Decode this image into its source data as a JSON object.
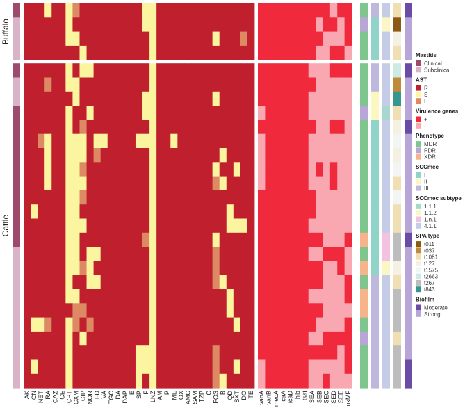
{
  "chart_data": {
    "type": "heatmap",
    "title": "",
    "groups": [
      {
        "name": "Buffalo",
        "rows": 4
      },
      {
        "name": "Cattle",
        "rows": 23
      }
    ],
    "antibiotic_columns": [
      "AK",
      "CN",
      "NET",
      "RA",
      "CAZ",
      "CE",
      "CPT",
      "CXM",
      "CIP",
      "NOR",
      "FD",
      "VA",
      "TGC",
      "DA",
      "DAP",
      "E",
      "SP",
      "F",
      "LNZ",
      "AM",
      "P",
      "ME",
      "OX",
      "AMC",
      "SAM",
      "TZP",
      "C",
      "FOS",
      "B",
      "QD",
      "SXT",
      "DO",
      "TE"
    ],
    "virulence_columns": [
      "vanA",
      "vanB",
      "mecA",
      "icaA",
      "icaD",
      "hlb",
      "tsst",
      "SEA",
      "SEB",
      "SEC",
      "SED",
      "SEE",
      "LukMF"
    ],
    "ast_codes": {
      "R": "R",
      "S": "S",
      "I": "I"
    },
    "antibiotic_matrix": [
      "RRRSRRSIRRRRRRRRRSSRRRRRRRRRRRRRR",
      "RRRRRRSRRRRRRRRRRSSRRRRRRRRRRRRRR",
      "RRRRRRSSRRRRRRRRRRSRRRRRRRRSRRRIR",
      "RRRRRRRRSRRRRRRRRRSRRRRRRRRRRRRRR",
      "RRRRRRSRSSRRRRRRRRSRRRRRRRRRRRRRR",
      "RRRIRRSSRRRRRRRRRRSRRRRRRRRRRRRRR",
      "RRRRRRRSRRRRRRRRRSSRRRRRRRRSRRRRR",
      "RRRRRRSRRSRRRRRRRSSRRRRRRRRRRRRRR",
      "RRRRRRSRIRRRRRRRRRSRRRRRRRRRRRRRR",
      "RRISRRSSSRSSRRRRSSSRRSRRRRRRRRRRR",
      "RRRSRRSSSRIRRRRRRRSRRRRRRRRRSRRRR",
      "RRRSRRSSIRRRRRRRRRSRRRRRRRRSRRSRR",
      "RRRSRRSSSRRRRRRRRRSRRRRRRRRISRRRR",
      "RRRRRRSSIRRRRRRRRRSRRRRRRRRRRRRRR",
      "RSRRRRSSRRRRRRRRRRSRRRRRRRRRRSRRR",
      "RRRRRRSSSRRRRRRRRRSRRRRRRRRRRSSSR",
      "RRRRRRSSRRRRRRRRRISRRRRRRRRSRRRRR",
      "RRRRRRSSRSSRRRRRRRSRRRRRRRRIRRRRR",
      "RRRRRRSSISRRRRRRRRSRRRRRRRRIRRRRR",
      "RRRRRRSRRSSRRRRRRRSRRRRRRRRISRRRR",
      "RRRRRRSSRRRRRRRRRRSRRRRRRRRRRSRRR",
      "RRRRRRRIIRRRRRRRRRSRRRRRRRRRRSRRR",
      "RSSIRRSIRIRRRRRRRRSRRRRRRRRRRRSRR",
      "RRRRRRSRSRRRRRRRRRSRRRRRRRRRRRRRR",
      "RRRRRRSRRRRRRRRRSSSRRRRRRRRIRRRRR",
      "RSRRRRSRRRRRRRRRSSSRRRRRRRRIRRSRR",
      "RRRRRRSRRRRRRRRRSRSRRRRRRRRISRRRR"
    ],
    "virulence_matrix": [
      "++++++++++-++",
      "++++++++-++-+",
      "+++++++++---+",
      "++++++++--++-",
      "+++++++---+++",
      "++++++++-----",
      "+++++++------",
      "-++++++------",
      "++++++++--++-",
      "-++++++------",
      "-++++++------",
      "-++++++-+-+--",
      "-++++++---+--",
      "++++++++-----",
      "++++++++-----",
      "+++++++------",
      "+++++++++---+",
      "+++++++--+++-",
      "+++++++++--+-",
      "+++++++++---+",
      "+++++++-----+",
      "+++++++++----",
      "++++++++----+",
      "+++++++--++++",
      "+++++++++++-+",
      "-++++++-----+",
      "-++++++--+---"
    ],
    "annotation_tracks": {
      "mastitis": [
        "Clinical",
        "Subclinical",
        "Subclinical",
        "Subclinical",
        "Clinical",
        "Subclinical",
        "Subclinical",
        "Clinical",
        "Clinical",
        "Clinical",
        "Clinical",
        "Clinical",
        "Clinical",
        "Clinical",
        "Clinical",
        "Clinical",
        "Clinical",
        "Subclinical",
        "Subclinical",
        "Subclinical",
        "Subclinical",
        "Subclinical",
        "Subclinical",
        "Subclinical",
        "Subclinical",
        "Subclinical",
        "Subclinical"
      ],
      "phenotype": [
        "MDR",
        "PDR",
        "MDR",
        "MDR",
        "MDR",
        "MDR",
        "MDR",
        "PDR",
        "MDR",
        "MDR",
        "MDR",
        "MDR",
        "MDR",
        "MDR",
        "MDR",
        "MDR",
        "XDR",
        "MDR",
        "XDR",
        "MDR",
        "XDR",
        "XDR",
        "MDR",
        "PDR",
        "MDR",
        "MDR",
        "MDR"
      ],
      "sccmec": [
        "III",
        "I",
        "I",
        "I",
        "III",
        "III",
        "II",
        "II",
        "I",
        "I",
        "I",
        "I",
        "I",
        "I",
        "I",
        "I",
        "I",
        "I",
        "I",
        "III",
        "III",
        "III",
        "III",
        "III",
        "III",
        "III",
        "III"
      ],
      "sccmec_subtype": [
        "4.1.1",
        "1.1.2",
        "4.1.1",
        "4.1.1",
        "4.1.1",
        "4.1.1",
        "4.1.1",
        "1.1.1",
        "4.1.1",
        "4.1.1",
        "4.1.1",
        "4.1.1",
        "4.1.1",
        "4.1.1",
        "4.1.1",
        "4.1.1",
        "1.n.1",
        "1.n.1",
        "1.1.2",
        "4.1.1",
        "4.1.1",
        "4.1.1",
        "4.1.1",
        "4.1.1",
        "4.1.1",
        "4.1.1",
        "4.1.1"
      ],
      "spa_type": [
        "t1081",
        "t011",
        "t127",
        "t1081",
        "t2663",
        "t037",
        "t843",
        "t1081",
        "t127",
        "t1575",
        "t127",
        "t1575",
        "t1081",
        "t1575",
        "t1081",
        "t1081",
        "t267",
        "t267",
        "t127",
        "t1081",
        "t267",
        "t267",
        "t267",
        "t1081",
        "t267",
        "t267",
        "t267"
      ],
      "biofilm": [
        "Moderate",
        "Strong",
        "Strong",
        "Strong",
        "Moderate",
        "Strong",
        "Strong",
        "Strong",
        "Moderate",
        "Strong",
        "Strong",
        "Strong",
        "Strong",
        "Strong",
        "Strong",
        "Strong",
        "Moderate",
        "Strong",
        "Strong",
        "Strong",
        "Strong",
        "Strong",
        "Strong",
        "Strong",
        "Strong",
        "Moderate",
        "Moderate"
      ]
    },
    "legend_placement": "right",
    "legend": [
      {
        "title": "Mastitis",
        "items": [
          "Clinical",
          "Subclinical"
        ]
      },
      {
        "title": "AST",
        "items": [
          "R",
          "S",
          "I"
        ]
      },
      {
        "title": "Virulence genes",
        "items": [
          "+",
          "-"
        ]
      },
      {
        "title": "Phenotype",
        "items": [
          "MDR",
          "PDR",
          "XDR"
        ]
      },
      {
        "title": "SCCmec",
        "items": [
          "I",
          "II",
          "III"
        ]
      },
      {
        "title": "SCCmec subtype",
        "items": [
          "1.1.1",
          "1.1.2",
          "1.n.1",
          "4.1.1"
        ]
      },
      {
        "title": "SPA type",
        "items": [
          "t011",
          "t037",
          "t1081",
          "t127",
          "t1575",
          "t2663",
          "t267",
          "t843"
        ]
      },
      {
        "title": "Biofilm",
        "items": [
          "Moderate",
          "Strong"
        ]
      }
    ],
    "colors": {
      "Clinical": "#9e4a6c",
      "Subclinical": "#d9b3c7",
      "R": "#c0202e",
      "S": "#fbf5a0",
      "I": "#dd8a64",
      "+": "#f02a3c",
      "-": "#f9a7b0",
      "MDR": "#7fc58e",
      "PDR": "#b8a7d6",
      "XDR": "#f7b38a",
      "I_sccmec": "#8fd3c9",
      "II_sccmec": "#fbf7c0",
      "III_sccmec": "#bdb8dc",
      "1.1.1": "#a7d8cf",
      "1.1.2": "#fbf7c5",
      "1.n.1": "#f2c2e0",
      "4.1.1": "#c5cce8",
      "t011": "#8c5a14",
      "t037": "#bf8a3a",
      "t1081": "#efdfb2",
      "t127": "#f4f1e2",
      "t1575": "#f3f5f5",
      "t2663": "#ccebe6",
      "t267": "#bdbdbd",
      "t843": "#35978f",
      "Moderate": "#6a4ba5",
      "Strong": "#b9a6d8"
    }
  }
}
